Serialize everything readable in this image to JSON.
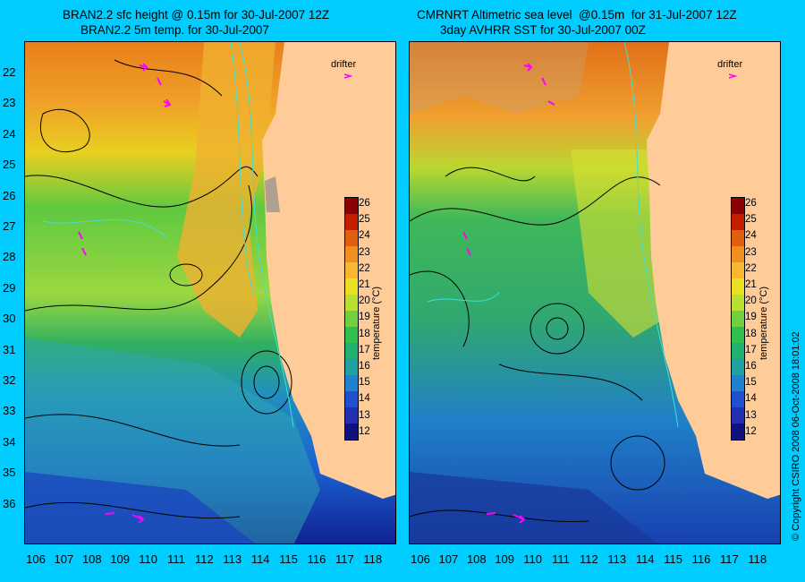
{
  "left_panel": {
    "title_line1": "BRAN2.2 sfc height @ 0.15m for 30-Jul-2007 12Z",
    "title_line2": "BRAN2.2 5m temp. for 30-Jul-2007",
    "drifter_label": "drifter"
  },
  "right_panel": {
    "title_line1": "CMRNRT Altimetric sea level  @0.15m  for 31-Jul-2007 12Z",
    "title_line2": "3day AVHRR SST for 30-Jul-2007 00Z",
    "drifter_label": "drifter"
  },
  "latitude_ticks": [
    "22",
    "23",
    "24",
    "25",
    "26",
    "27",
    "28",
    "29",
    "30",
    "31",
    "32",
    "33",
    "34",
    "35",
    "36"
  ],
  "longitude_ticks": [
    "106",
    "107",
    "108",
    "109",
    "110",
    "111",
    "112",
    "113",
    "114",
    "115",
    "116",
    "117",
    "118"
  ],
  "colorbar": {
    "label": "temperature (°C)",
    "ticks": [
      "26",
      "25",
      "24",
      "23",
      "22",
      "21",
      "20",
      "19",
      "18",
      "17",
      "16",
      "15",
      "14",
      "13",
      "12"
    ],
    "colors": [
      "#8b0000",
      "#c42000",
      "#e06010",
      "#f09020",
      "#f6b830",
      "#e8e020",
      "#b8e030",
      "#70d040",
      "#30c050",
      "#20b070",
      "#20a0a0",
      "#2080d0",
      "#2050d0",
      "#2030b0",
      "#101080"
    ]
  },
  "land_color": "#ffcc99",
  "copyright": "© Copyright CSIRO 2008    06-Oct-2008 18:01:02"
}
